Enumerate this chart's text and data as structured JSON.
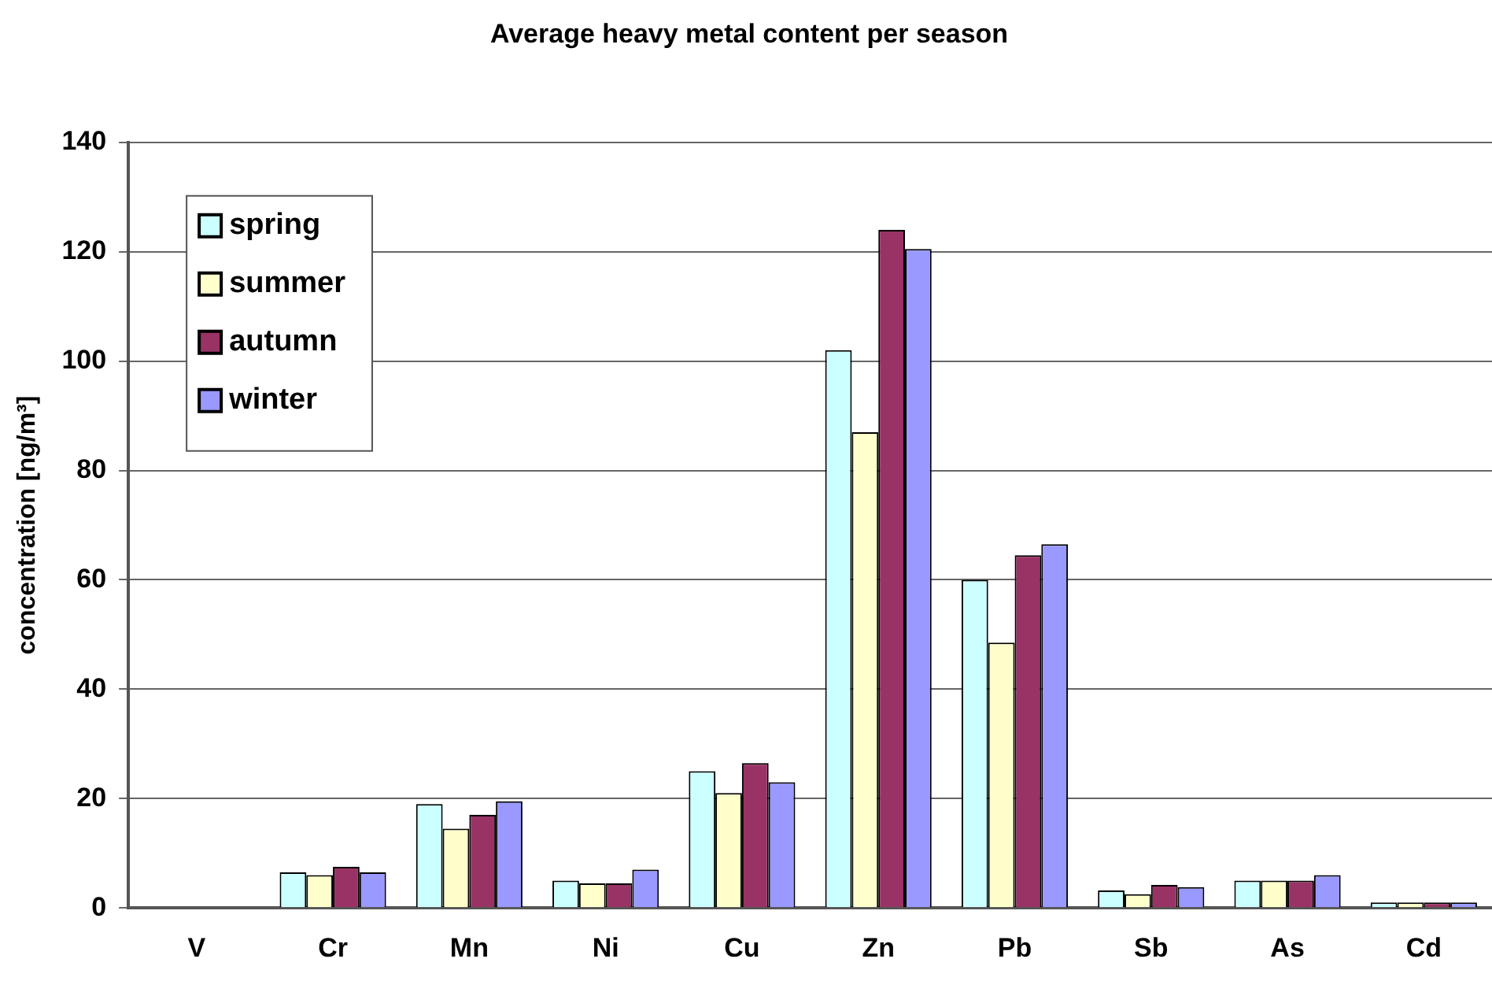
{
  "chart_data": {
    "type": "bar",
    "title": "Average heavy metal content per season",
    "ylabel": "concentration [ng/m³]",
    "categories": [
      "V",
      "Cr",
      "Mn",
      "Ni",
      "Cu",
      "Zn",
      "Pb",
      "Sb",
      "As",
      "Cd"
    ],
    "series": [
      {
        "name": "spring",
        "color": "#ccffff",
        "values": [
          null,
          6.5,
          19,
          5,
          25,
          102,
          60,
          3.2,
          5,
          1
        ]
      },
      {
        "name": "summer",
        "color": "#ffffcc",
        "values": [
          null,
          6,
          14.5,
          4.5,
          21,
          87,
          48.5,
          2.5,
          5,
          1
        ]
      },
      {
        "name": "autumn",
        "color": "#993366",
        "values": [
          null,
          7.5,
          17,
          4.5,
          26.5,
          124,
          64.5,
          4.2,
          5,
          1
        ]
      },
      {
        "name": "winter",
        "color": "#9999ff",
        "values": [
          null,
          6.5,
          19.5,
          7,
          23,
          120.5,
          66.5,
          3.8,
          6,
          1
        ]
      }
    ],
    "ylim": [
      0,
      140
    ],
    "yticks": [
      0,
      20,
      40,
      60,
      80,
      100,
      120,
      140
    ],
    "grid": "y",
    "legend": "top left"
  }
}
